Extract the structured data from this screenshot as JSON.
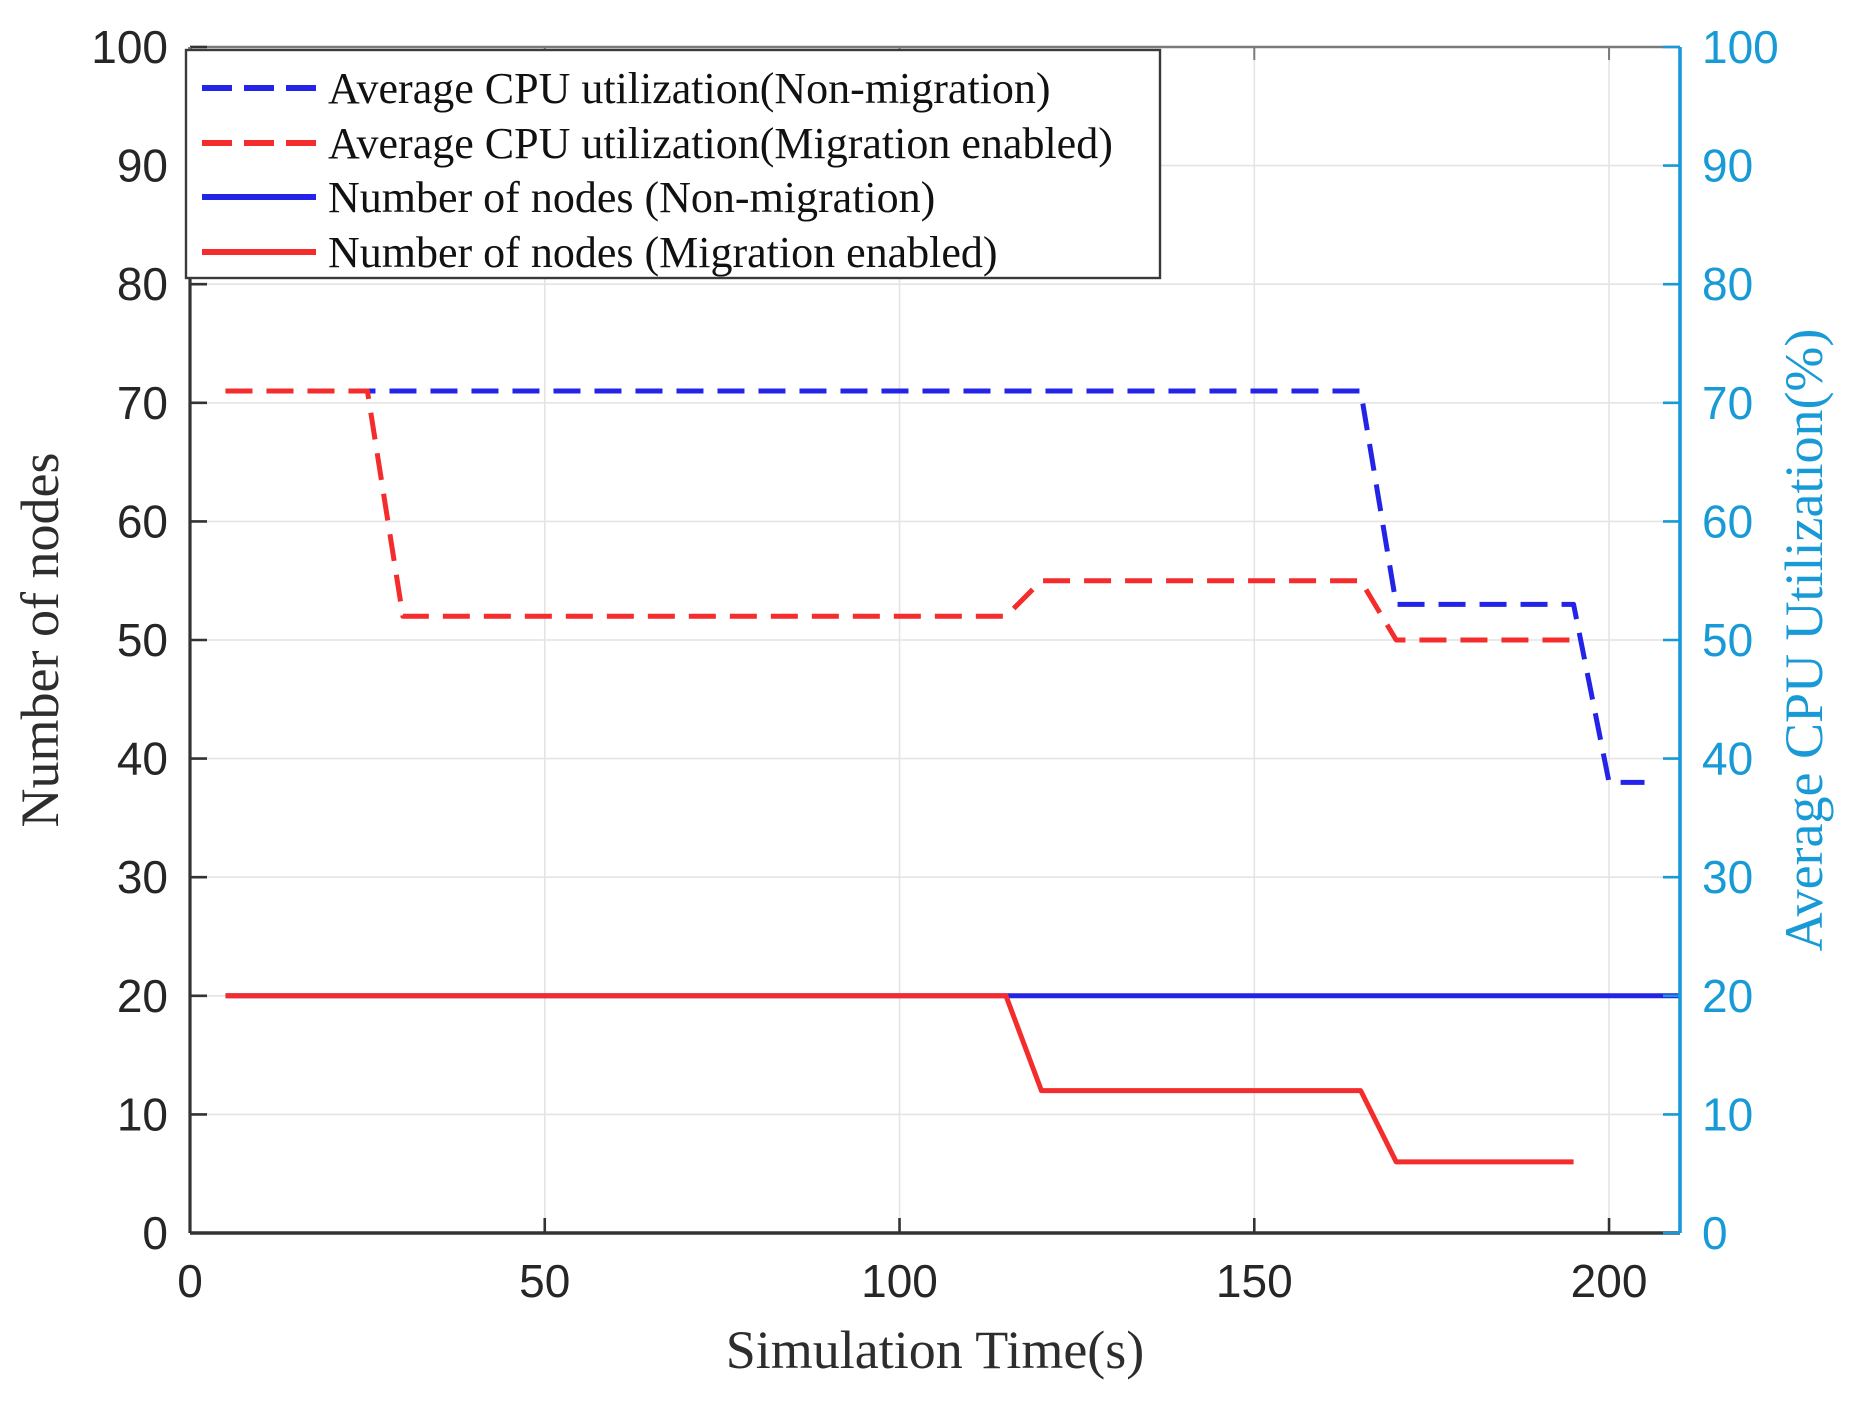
{
  "figure": {
    "background": "#ffffff"
  },
  "chart_data": {
    "type": "line",
    "title": "",
    "xlabel": "Simulation Time(s)",
    "ylabel_left": "Number of nodes",
    "ylabel_right": "Average CPU Utilization(%)",
    "x_range": [
      0,
      210
    ],
    "y_left_range": [
      0,
      100
    ],
    "y_right_range": [
      0,
      100
    ],
    "x_ticks": [
      0,
      50,
      100,
      150,
      200
    ],
    "y_ticks_left": [
      0,
      10,
      20,
      30,
      40,
      50,
      60,
      70,
      80,
      90,
      100
    ],
    "y_ticks_right": [
      0,
      10,
      20,
      30,
      40,
      50,
      60,
      70,
      80,
      90,
      100
    ],
    "grid": {
      "vertical_at": [
        50,
        100,
        150,
        200
      ],
      "horizontal_at": [
        10,
        20,
        30,
        40,
        50,
        60,
        70,
        80,
        90
      ]
    },
    "legend_position": "top-left",
    "series": [
      {
        "name": "Average CPU utilization(Non-migration)",
        "axis": "right",
        "style": "dashed",
        "color": "#2424e8",
        "points": [
          [
            5,
            71
          ],
          [
            165,
            71
          ],
          [
            170,
            53
          ],
          [
            195,
            53
          ],
          [
            200,
            38
          ],
          [
            205,
            38
          ]
        ]
      },
      {
        "name": "Average CPU utilization(Migration enabled)",
        "axis": "right",
        "style": "dashed",
        "color": "#f42c2c",
        "points": [
          [
            5,
            71
          ],
          [
            25,
            71
          ],
          [
            30,
            52
          ],
          [
            115,
            52
          ],
          [
            120,
            55
          ],
          [
            165,
            55
          ],
          [
            170,
            50
          ],
          [
            195,
            50
          ]
        ]
      },
      {
        "name": "Number of nodes (Non-migration)",
        "axis": "left",
        "style": "solid",
        "color": "#2424e8",
        "points": [
          [
            5,
            20
          ],
          [
            210,
            20
          ]
        ]
      },
      {
        "name": "Number of nodes (Migration enabled)",
        "axis": "left",
        "style": "solid",
        "color": "#f42c2c",
        "points": [
          [
            5,
            20
          ],
          [
            115,
            20
          ],
          [
            120,
            12
          ],
          [
            165,
            12
          ],
          [
            170,
            6
          ],
          [
            195,
            6
          ]
        ]
      }
    ],
    "colors": {
      "right_axis": "#189ad7",
      "tick_label": "#262626",
      "axis_line": "#333333",
      "top_border": "#7a7a7a",
      "grid_line": "#e4e4e4",
      "legend_border": "#3a3a3a",
      "legend_background": "#ffffff"
    }
  }
}
